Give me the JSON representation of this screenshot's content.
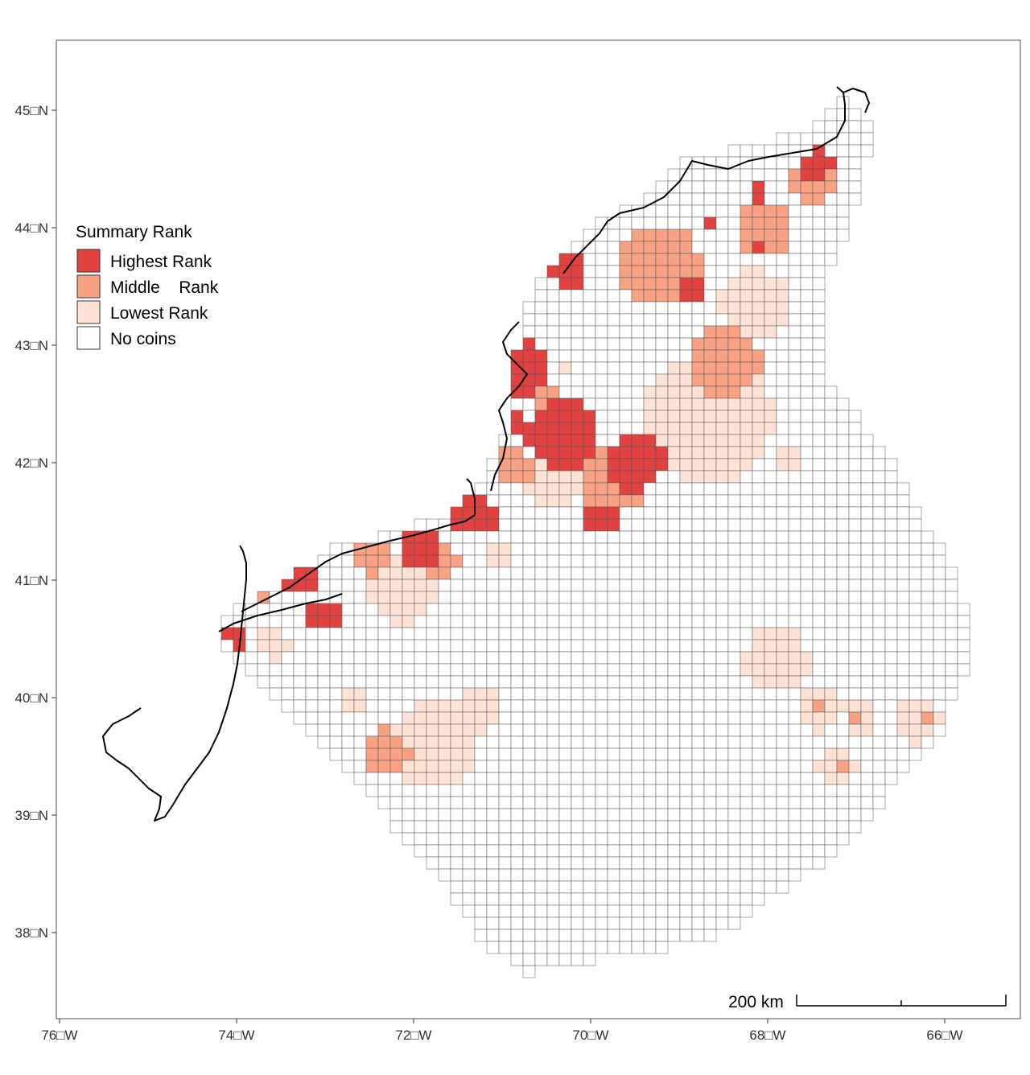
{
  "map": {
    "axes": {
      "y_ticks": [
        "45□N",
        "44□N",
        "43□N",
        "42□N",
        "41□N",
        "40□N",
        "39□N",
        "38□N"
      ],
      "y_values": [
        45,
        44,
        43,
        42,
        41,
        40,
        39,
        38
      ],
      "x_ticks": [
        "76□W",
        "74□W",
        "72□W",
        "70□W",
        "68□W",
        "66□W"
      ],
      "x_values": [
        -76,
        -74,
        -72,
        -70,
        -68,
        -66
      ],
      "xlim": [
        -76.1,
        -65.3
      ],
      "ylim": [
        37.3,
        45.6
      ]
    },
    "legend": {
      "title": "Summary Rank",
      "placement": "left",
      "items": [
        {
          "label": "Highest Rank",
          "color": "#e24341"
        },
        {
          "label": "Middle    Rank",
          "color": "#f7a283"
        },
        {
          "label": "Lowest Rank",
          "color": "#fde2d6"
        },
        {
          "label": "No coins",
          "color": "#ffffff"
        }
      ]
    },
    "scale_bar": {
      "label": "200 km"
    },
    "colors": {
      "grid_line": "#555555",
      "coast": "#000000",
      "panel_border": "#4d4d4d"
    }
  }
}
